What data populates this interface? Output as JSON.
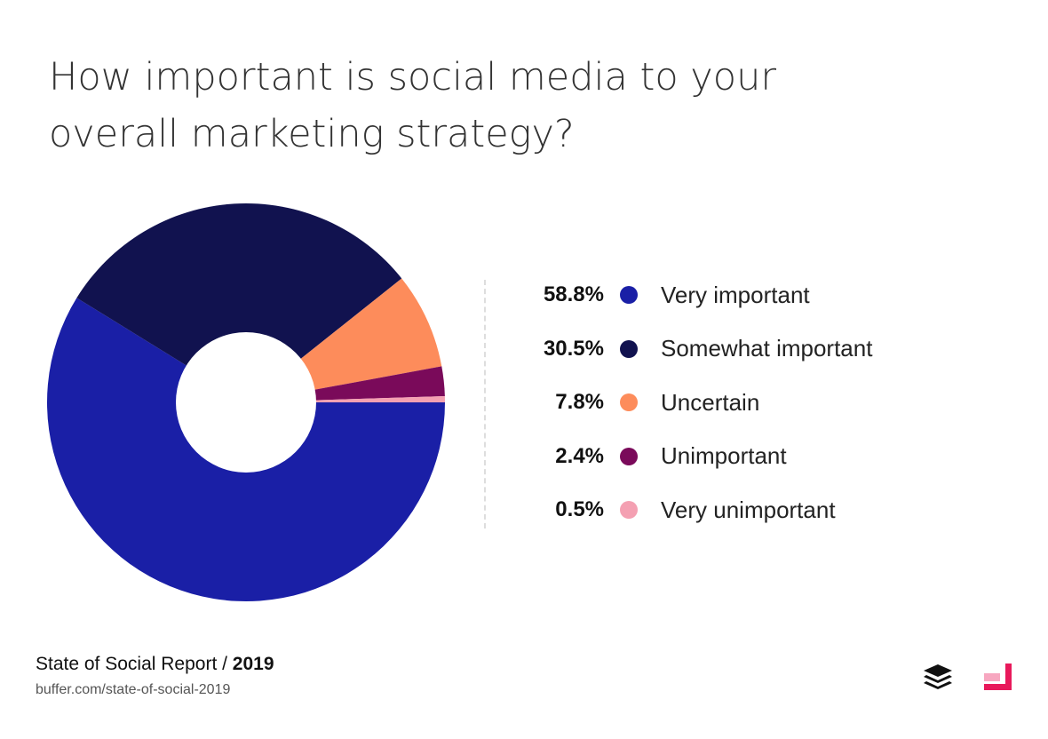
{
  "title": "How important is social media to your overall marketing strategy?",
  "chart_data": {
    "type": "pie",
    "donut": true,
    "title": "How important is social media to your overall marketing strategy?",
    "legend_position": "right",
    "series": [
      {
        "name": "Very important",
        "value": 58.8,
        "label": "58.8%",
        "color": "#1a1fa6"
      },
      {
        "name": "Somewhat important",
        "value": 30.5,
        "label": "30.5%",
        "color": "#11124f"
      },
      {
        "name": "Uncertain",
        "value": 7.8,
        "label": "7.8%",
        "color": "#fd8c5b"
      },
      {
        "name": "Unimportant",
        "value": 2.4,
        "label": "2.4%",
        "color": "#7a0a5a"
      },
      {
        "name": "Very unimportant",
        "value": 0.5,
        "label": "0.5%",
        "color": "#f4a0b2"
      }
    ]
  },
  "footer": {
    "report": "State of Social Report / ",
    "year": "2019",
    "url": "buffer.com/state-of-social-2019"
  },
  "icons": {
    "buffer": "buffer-logo-icon",
    "partner": "partner-logo-icon"
  }
}
